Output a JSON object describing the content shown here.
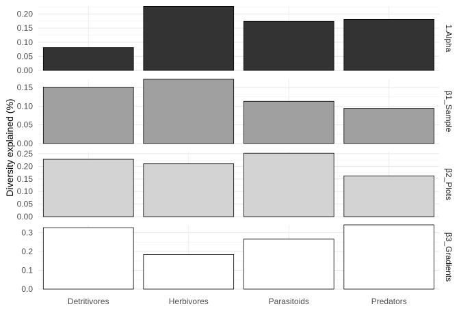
{
  "chart_data": {
    "type": "bar",
    "layout": "faceted-rows",
    "ylabel": "Diversity explained (%)",
    "xlabel": "",
    "categories": [
      "Detritivores",
      "Herbivores",
      "Parasitoids",
      "Predators"
    ],
    "grid": true,
    "legend": "none",
    "facets": [
      {
        "name": "1.Alpha",
        "values": [
          0.081,
          0.227,
          0.174,
          0.181
        ],
        "ylim": [
          0,
          0.228
        ],
        "ticks": [
          0.0,
          0.05,
          0.1,
          0.15,
          0.2
        ],
        "tick_labels": [
          "0.00",
          "0.05",
          "0.10",
          "0.15",
          "0.20"
        ],
        "fill": "#333333"
      },
      {
        "name": "β1_Sample",
        "values": [
          0.151,
          0.172,
          0.113,
          0.094
        ],
        "ylim": [
          0,
          0.172
        ],
        "ticks": [
          0.0,
          0.05,
          0.1,
          0.15
        ],
        "tick_labels": [
          "0.00",
          "0.05",
          "0.10",
          "0.15"
        ],
        "fill": "#a0a0a0"
      },
      {
        "name": "β2_Plots",
        "values": [
          0.228,
          0.21,
          0.252,
          0.162
        ],
        "ylim": [
          0,
          0.258
        ],
        "ticks": [
          0.0,
          0.05,
          0.1,
          0.15,
          0.2,
          0.25
        ],
        "tick_labels": [
          "0.00",
          "0.05",
          "0.10",
          "0.15",
          "0.20",
          "0.25"
        ],
        "fill": "#d3d3d3"
      },
      {
        "name": "β3_Gradients",
        "values": [
          0.327,
          0.184,
          0.266,
          0.342
        ],
        "ylim": [
          0,
          0.342
        ],
        "ticks": [
          0.0,
          0.1,
          0.2,
          0.3
        ],
        "tick_labels": [
          "0.0",
          "0.1",
          "0.2",
          "0.3"
        ],
        "fill": "#ffffff"
      }
    ]
  }
}
